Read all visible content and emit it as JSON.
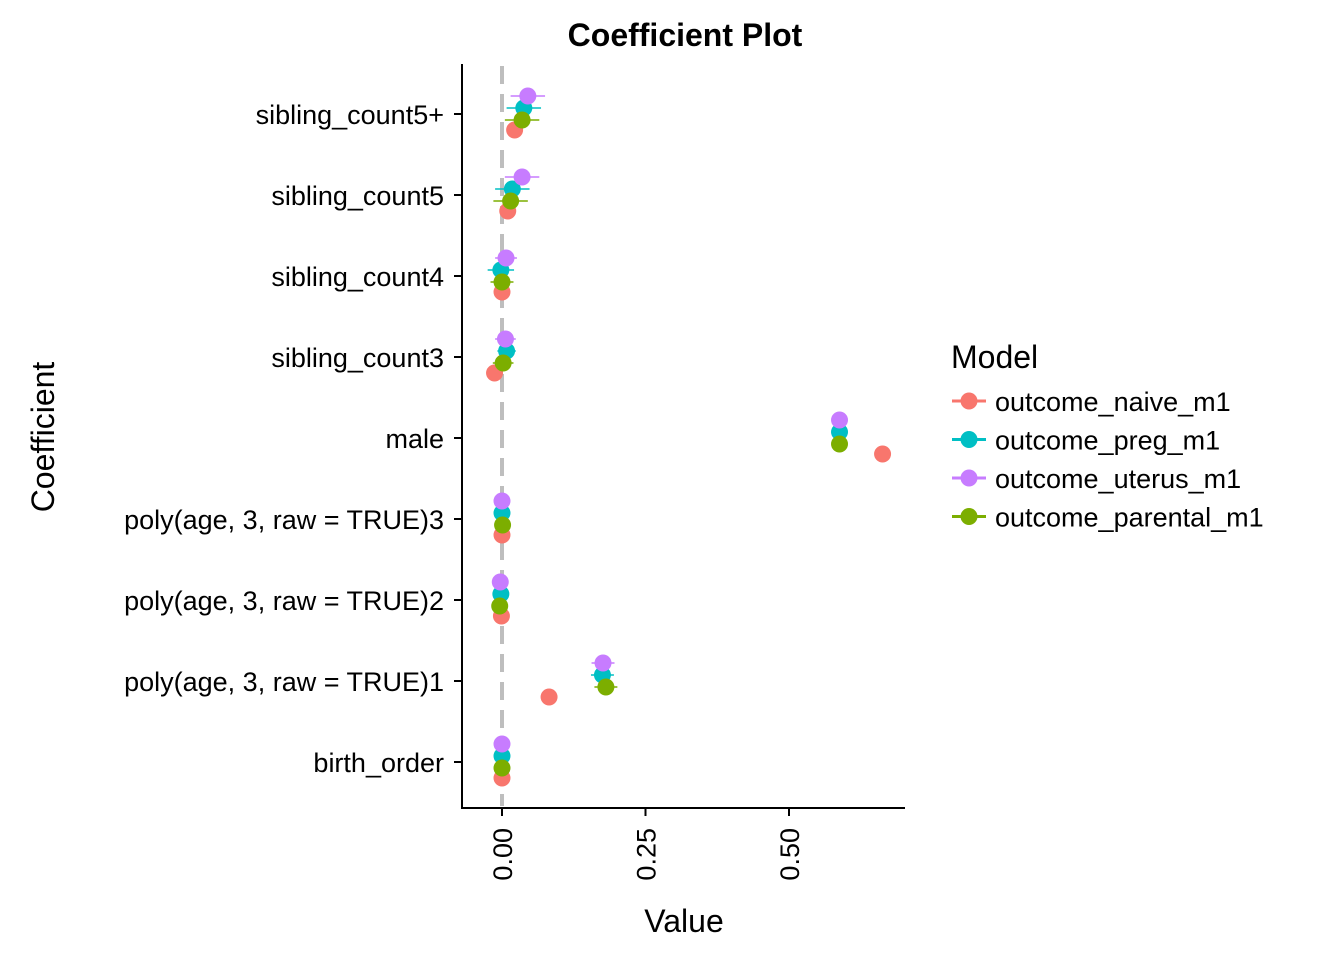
{
  "chart_data": {
    "type": "scatter",
    "title": "Coefficient Plot",
    "xlabel": "Value",
    "ylabel": "Coefficient",
    "xlim": [
      -0.07,
      0.71
    ],
    "x_ticks": [
      0.0,
      0.25,
      0.5
    ],
    "x_tick_labels": [
      "0.00",
      "0.25",
      "0.50"
    ],
    "zero_line": true,
    "grid": false,
    "legend_position": "right",
    "legend_title": "Model",
    "categories": [
      "birth_order",
      "poly(age, 3, raw = TRUE)1",
      "poly(age, 3, raw = TRUE)2",
      "poly(age, 3, raw = TRUE)3",
      "male",
      "sibling_count3",
      "sibling_count4",
      "sibling_count5",
      "sibling_count5+"
    ],
    "series": [
      {
        "name": "outcome_naive_m1",
        "color": "#F8766D",
        "values": [
          0.0,
          0.082,
          -0.001,
          0.0,
          0.663,
          -0.013,
          0.0,
          0.01,
          0.022
        ],
        "ci_low": [
          -0.002,
          0.08,
          -0.002,
          -0.002,
          0.66,
          -0.025,
          -0.012,
          0.0,
          0.012
        ],
        "ci_high": [
          0.002,
          0.084,
          0.0,
          0.002,
          0.666,
          -0.001,
          0.012,
          0.02,
          0.032
        ]
      },
      {
        "name": "outcome_preg_m1",
        "color": "#00BFC4",
        "values": [
          0.0,
          0.175,
          -0.002,
          0.0,
          0.588,
          0.008,
          -0.002,
          0.018,
          0.038
        ],
        "ci_low": [
          -0.003,
          0.155,
          -0.003,
          -0.003,
          0.585,
          -0.008,
          -0.025,
          -0.012,
          0.008
        ],
        "ci_high": [
          0.003,
          0.195,
          -0.001,
          0.003,
          0.591,
          0.024,
          0.021,
          0.048,
          0.068
        ]
      },
      {
        "name": "outcome_uterus_m1",
        "color": "#C77CFF",
        "values": [
          0.0,
          0.176,
          -0.003,
          0.0,
          0.588,
          0.006,
          0.007,
          0.035,
          0.045
        ],
        "ci_low": [
          -0.003,
          0.156,
          -0.004,
          -0.003,
          0.585,
          -0.012,
          -0.012,
          0.005,
          0.015
        ],
        "ci_high": [
          0.003,
          0.196,
          -0.002,
          0.003,
          0.591,
          0.024,
          0.026,
          0.065,
          0.075
        ]
      },
      {
        "name": "outcome_parental_m1",
        "color": "#7CAE00",
        "values": [
          0.0,
          0.181,
          -0.004,
          0.001,
          0.588,
          0.002,
          0.0,
          0.015,
          0.035
        ],
        "ci_low": [
          -0.003,
          0.161,
          -0.006,
          -0.002,
          0.585,
          -0.016,
          -0.02,
          -0.015,
          0.005
        ],
        "ci_high": [
          0.003,
          0.201,
          -0.002,
          0.004,
          0.591,
          0.02,
          0.02,
          0.045,
          0.065
        ]
      }
    ]
  }
}
